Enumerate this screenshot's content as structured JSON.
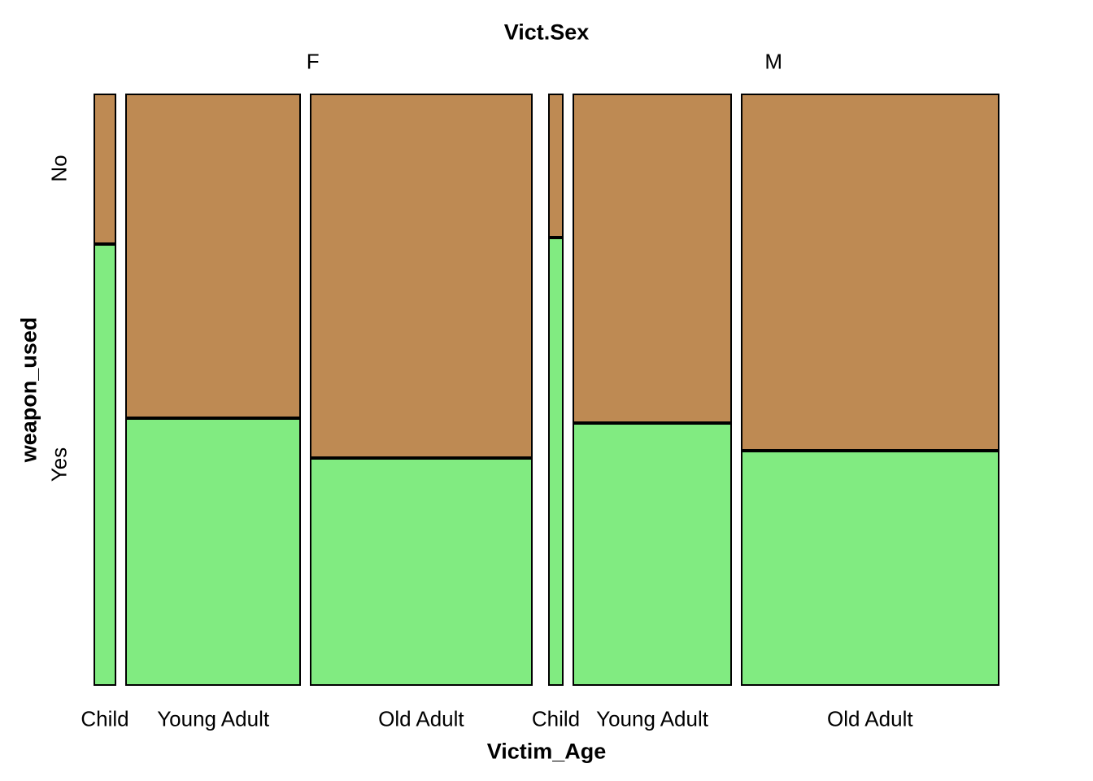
{
  "title": "Vict.Sex",
  "x_axis_label": "Victim_Age",
  "y_axis_label": "weapon_used",
  "y_levels": [
    "No",
    "Yes"
  ],
  "groups": [
    "F",
    "M"
  ],
  "colors": {
    "no": "#BE8A53",
    "yes": "#81EB81",
    "border": "#000000",
    "background": "#ffffff"
  },
  "chart_data": {
    "type": "mosaic",
    "title": "Vict.Sex",
    "xlabel": "Victim_Age",
    "ylabel": "weapon_used",
    "row_levels": [
      "No",
      "Yes"
    ],
    "column_variable": "Victim_Age",
    "group_variable": "Vict.Sex",
    "legend_position": "none",
    "grid": false,
    "columns": [
      {
        "group": "F",
        "category": "Child",
        "width_frac": 0.0267,
        "no_frac": 0.254,
        "yes_frac": 0.746
      },
      {
        "group": "F",
        "category": "Young Adult",
        "width_frac": 0.2057,
        "no_frac": 0.548,
        "yes_frac": 0.452
      },
      {
        "group": "F",
        "category": "Old Adult",
        "width_frac": 0.26,
        "no_frac": 0.615,
        "yes_frac": 0.385
      },
      {
        "group": "M",
        "category": "Child",
        "width_frac": 0.019,
        "no_frac": 0.243,
        "yes_frac": 0.757
      },
      {
        "group": "M",
        "category": "Young Adult",
        "width_frac": 0.1857,
        "no_frac": 0.556,
        "yes_frac": 0.444
      },
      {
        "group": "M",
        "category": "Old Adult",
        "width_frac": 0.3029,
        "no_frac": 0.603,
        "yes_frac": 0.397
      }
    ]
  }
}
